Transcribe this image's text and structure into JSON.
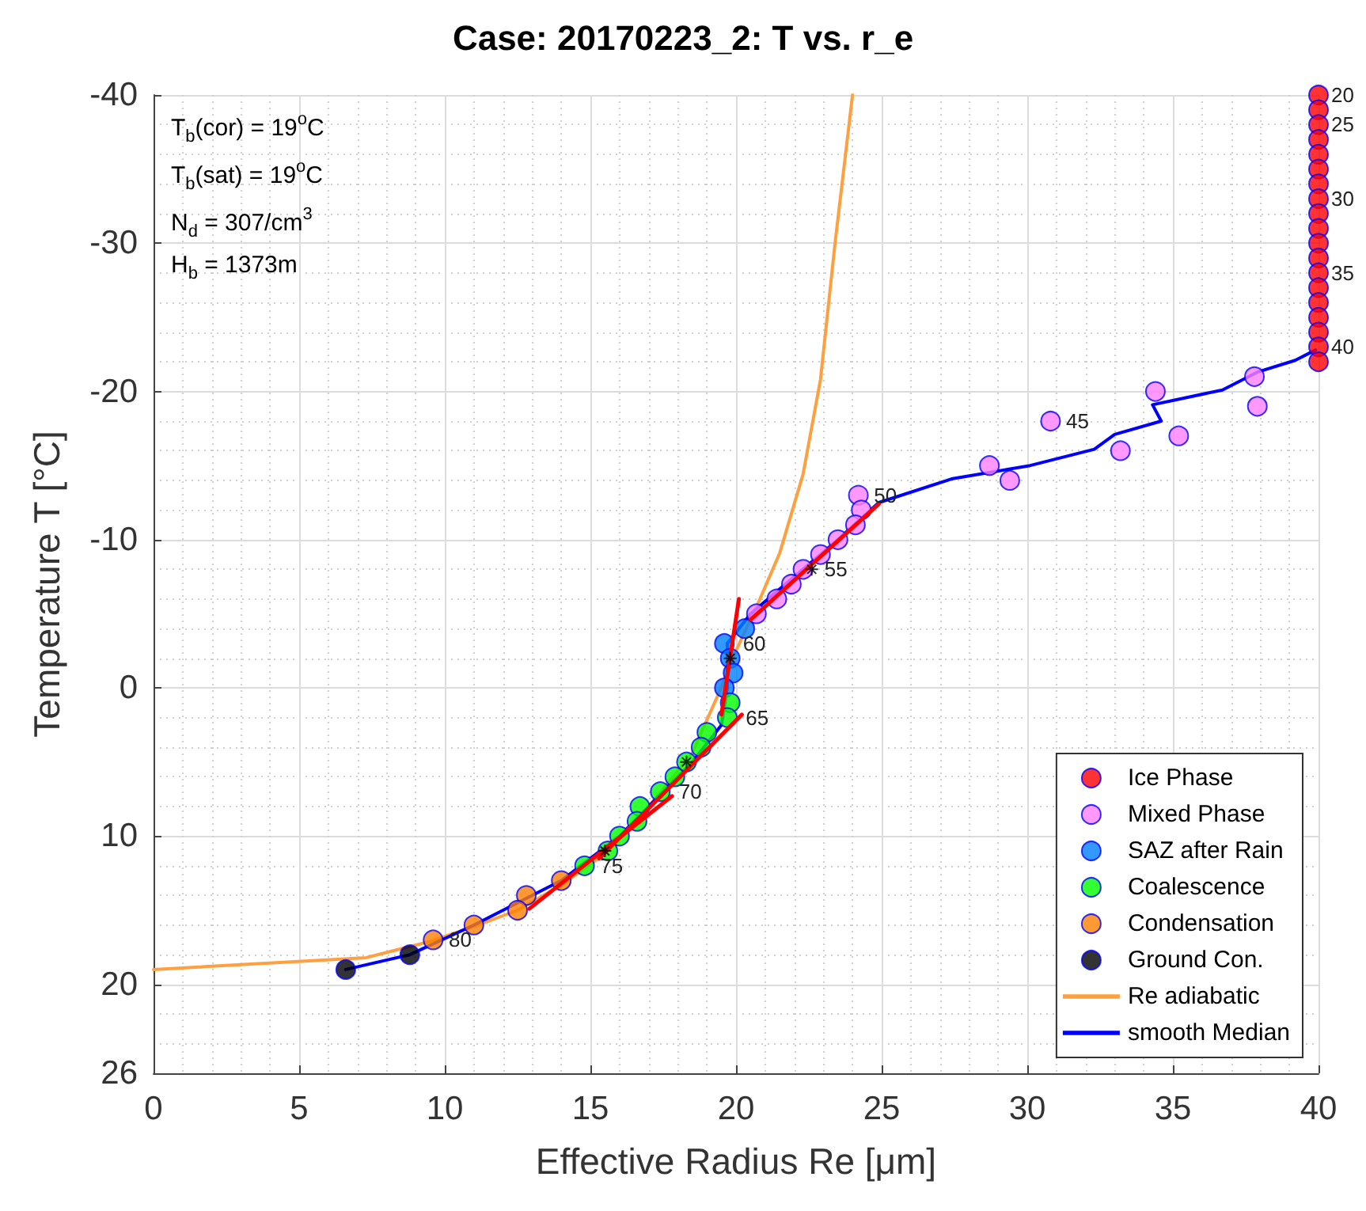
{
  "chart_data": {
    "type": "scatter",
    "title": "Case: 20170223_2: T vs. r_e",
    "xlabel": "Effective Radius Re [μm]",
    "ylabel": "Temperature T [°C]",
    "xlim": [
      0,
      40
    ],
    "xticks": [
      0,
      5,
      10,
      15,
      20,
      25,
      30,
      35,
      40
    ],
    "ylim": [
      26,
      -40
    ],
    "yticks": [
      -40,
      -30,
      -20,
      -10,
      0,
      10,
      20,
      26
    ],
    "grid": true,
    "legend": "bottom right",
    "marker": "circle",
    "line_style": "solid",
    "series": [
      {
        "name": "Ice Phase",
        "color": "#ff0000",
        "x": [
          40,
          40,
          40,
          40,
          40,
          40,
          40,
          40,
          40,
          40,
          40,
          40,
          40,
          40,
          40,
          40,
          40,
          40,
          40
        ],
        "values": [
          -40,
          -39,
          -38,
          -37,
          -36,
          -35,
          -34,
          -33,
          -32,
          -31,
          -30,
          -29,
          -28,
          -27,
          -26,
          -25,
          -24,
          -23,
          -22
        ]
      },
      {
        "name": "Mixed Phase",
        "color": "#ff80ff",
        "x": [
          37.8,
          37.9,
          34.4,
          30.8,
          35.2,
          33.2,
          28.7,
          29.4,
          24.2,
          24.3,
          24.1,
          23.5,
          22.9,
          22.3,
          21.9,
          21.4,
          20.7
        ],
        "values": [
          -21,
          -19,
          -20,
          -18,
          -17,
          -16,
          -15,
          -14,
          -13,
          -12,
          -11,
          -10,
          -9,
          -8,
          -7,
          -6,
          -5
        ]
      },
      {
        "name": "SAZ after Rain",
        "color": "#0080ff",
        "x": [
          20.3,
          19.6,
          19.8,
          19.9,
          19.6
        ],
        "values": [
          -4,
          -3,
          -2,
          -1,
          0
        ]
      },
      {
        "name": "Coalescence",
        "color": "#00ff00",
        "x": [
          19.8,
          19.7,
          19.0,
          18.8,
          18.3,
          17.9,
          17.4,
          16.7,
          16.6,
          16.0,
          15.6,
          14.8
        ],
        "values": [
          1,
          2,
          3,
          4,
          5,
          6,
          7,
          8,
          9,
          10,
          11,
          12
        ]
      },
      {
        "name": "Condensation",
        "color": "#ff8000",
        "x": [
          14.0,
          12.8,
          12.5,
          11.0,
          9.6
        ],
        "values": [
          13,
          14,
          15,
          16,
          17
        ]
      },
      {
        "name": "Ground Con.",
        "color": "#000000",
        "x": [
          8.8,
          6.6
        ],
        "values": [
          18,
          19
        ]
      },
      {
        "name": "Re adiabatic",
        "type": "line",
        "color": "#ffa040",
        "marker": "none",
        "x": [
          0,
          7.3,
          9.5,
          11.0,
          12.5,
          14.0,
          15.5,
          16.5,
          17.5,
          18.5,
          18.9,
          19.4,
          20.0,
          20.8,
          21.5,
          22.3,
          22.9,
          23.4,
          24.0
        ],
        "values": [
          19,
          18.2,
          17.1,
          16.1,
          15,
          13.3,
          11.2,
          9.2,
          6.8,
          4.4,
          2.6,
          0.4,
          -2.5,
          -5.9,
          -9.1,
          -14.4,
          -20.8,
          -30,
          -40
        ]
      },
      {
        "name": "smooth Median",
        "type": "line",
        "color": "#0000ff",
        "marker": "none",
        "x": [
          6.6,
          8.8,
          11.0,
          14.0,
          16.0,
          17.5,
          18.5,
          19.5,
          19.7,
          19.7,
          20.5,
          22.0,
          23.5,
          24.9,
          27.4,
          30.1,
          32.3,
          33.0,
          34.6,
          34.3,
          36.7,
          37.9,
          39.2,
          39.9
        ],
        "values": [
          19,
          18,
          16,
          13,
          10,
          7,
          5,
          2.5,
          0,
          -3,
          -5,
          -7.5,
          -10,
          -12.5,
          -14.1,
          -15,
          -16.1,
          -17.1,
          -18,
          -19.1,
          -20.1,
          -21.3,
          -22.1,
          -22.8
        ]
      },
      {
        "type": "line",
        "color": "#ff0000",
        "marker": "none",
        "x": [
          12.9,
          17.8
        ],
        "values": [
          14.9,
          7.3
        ]
      },
      {
        "type": "line",
        "color": "#ff0000",
        "marker": "none",
        "x": [
          20.2,
          15.3
        ],
        "values": [
          1.8,
          11.5
        ]
      },
      {
        "type": "line",
        "color": "#ff0000",
        "marker": "none",
        "x": [
          20.1,
          19.5
        ],
        "values": [
          -6,
          1.8
        ]
      },
      {
        "type": "line",
        "color": "#ff0000",
        "marker": "none",
        "x": [
          20.5,
          24.9
        ],
        "values": [
          -4.6,
          -12.4
        ]
      },
      {
        "color": "#000000",
        "marker": "cross",
        "x": [
          15.5,
          18.3,
          19.8,
          22.6
        ],
        "values": [
          11,
          5,
          -2,
          -8
        ]
      }
    ],
    "annotations": [
      "T$_{b}$(cor) = 19$^{o}$C",
      "T$_{b}$(sat) = 19$^{o}$C",
      "N$_{d}$ = 307/cm$^{3}$",
      "H$_{b}$ = 1373m",
      {
        "text": "20",
        "x": 40,
        "y": -40
      },
      {
        "text": "25",
        "x": 40,
        "y": -38
      },
      {
        "text": "30",
        "x": 40,
        "y": -33
      },
      {
        "text": "35",
        "x": 40,
        "y": -28
      },
      {
        "text": "40",
        "x": 40,
        "y": -23
      },
      {
        "text": "45",
        "x": 30.9,
        "y": -18
      },
      {
        "text": "50",
        "x": 24.3,
        "y": -13
      },
      {
        "text": "55",
        "x": 22.6,
        "y": -8
      },
      {
        "text": "60",
        "x": 19.8,
        "y": -3
      },
      {
        "text": "65",
        "x": 19.9,
        "y": 2
      },
      {
        "text": "70",
        "x": 17.6,
        "y": 7
      },
      {
        "text": "75",
        "x": 14.9,
        "y": 12
      },
      {
        "text": "80",
        "x": 9.7,
        "y": 17
      }
    ]
  }
}
